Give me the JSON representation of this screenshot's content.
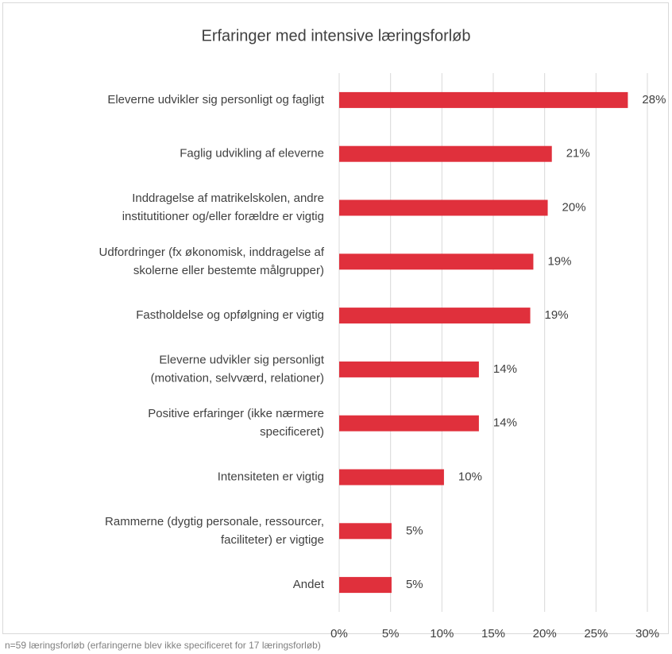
{
  "chart_data": {
    "type": "bar",
    "orientation": "horizontal",
    "title": "Erfaringer med intensive læringsforløb",
    "categories": [
      "Eleverne udvikler sig personligt og fagligt",
      "Faglig udvikling af eleverne",
      "Inddragelse af matrikelskolen, andre\ninstitutitioner og/eller forældre er vigtig",
      "Udfordringer (fx økonomisk, inddragelse af\nskolerne eller bestemte målgrupper)",
      "Fastholdelse og opfølgning er vigtig",
      "Eleverne udvikler sig personligt\n(motivation, selvværd, relationer)",
      "Positive erfaringer (ikke nærmere\nspecificeret)",
      "Intensiteten er vigtig",
      "Rammerne (dygtig personale, ressourcer,\nfaciliteter) er vigtige",
      "Andet"
    ],
    "values": [
      28.1,
      20.7,
      20.3,
      18.9,
      18.6,
      13.6,
      13.6,
      10.2,
      5.1,
      5.1
    ],
    "value_labels": [
      "28%",
      "21%",
      "20%",
      "19%",
      "19%",
      "14%",
      "14%",
      "10%",
      "5%",
      "5%"
    ],
    "color": "#e0303c",
    "xlim": [
      0,
      30
    ],
    "xticks": [
      {
        "value": 0,
        "label": "0%"
      },
      {
        "value": 5,
        "label": "5%"
      },
      {
        "value": 10,
        "label": "10%"
      },
      {
        "value": 15,
        "label": "15%"
      },
      {
        "value": 20,
        "label": "20%"
      },
      {
        "value": 25,
        "label": "25%"
      },
      {
        "value": 30,
        "label": "30%"
      }
    ],
    "grid": true,
    "note": "n=59 læringsforløb (erfaringerne blev ikke specificeret for 17 læringsforløb)"
  }
}
